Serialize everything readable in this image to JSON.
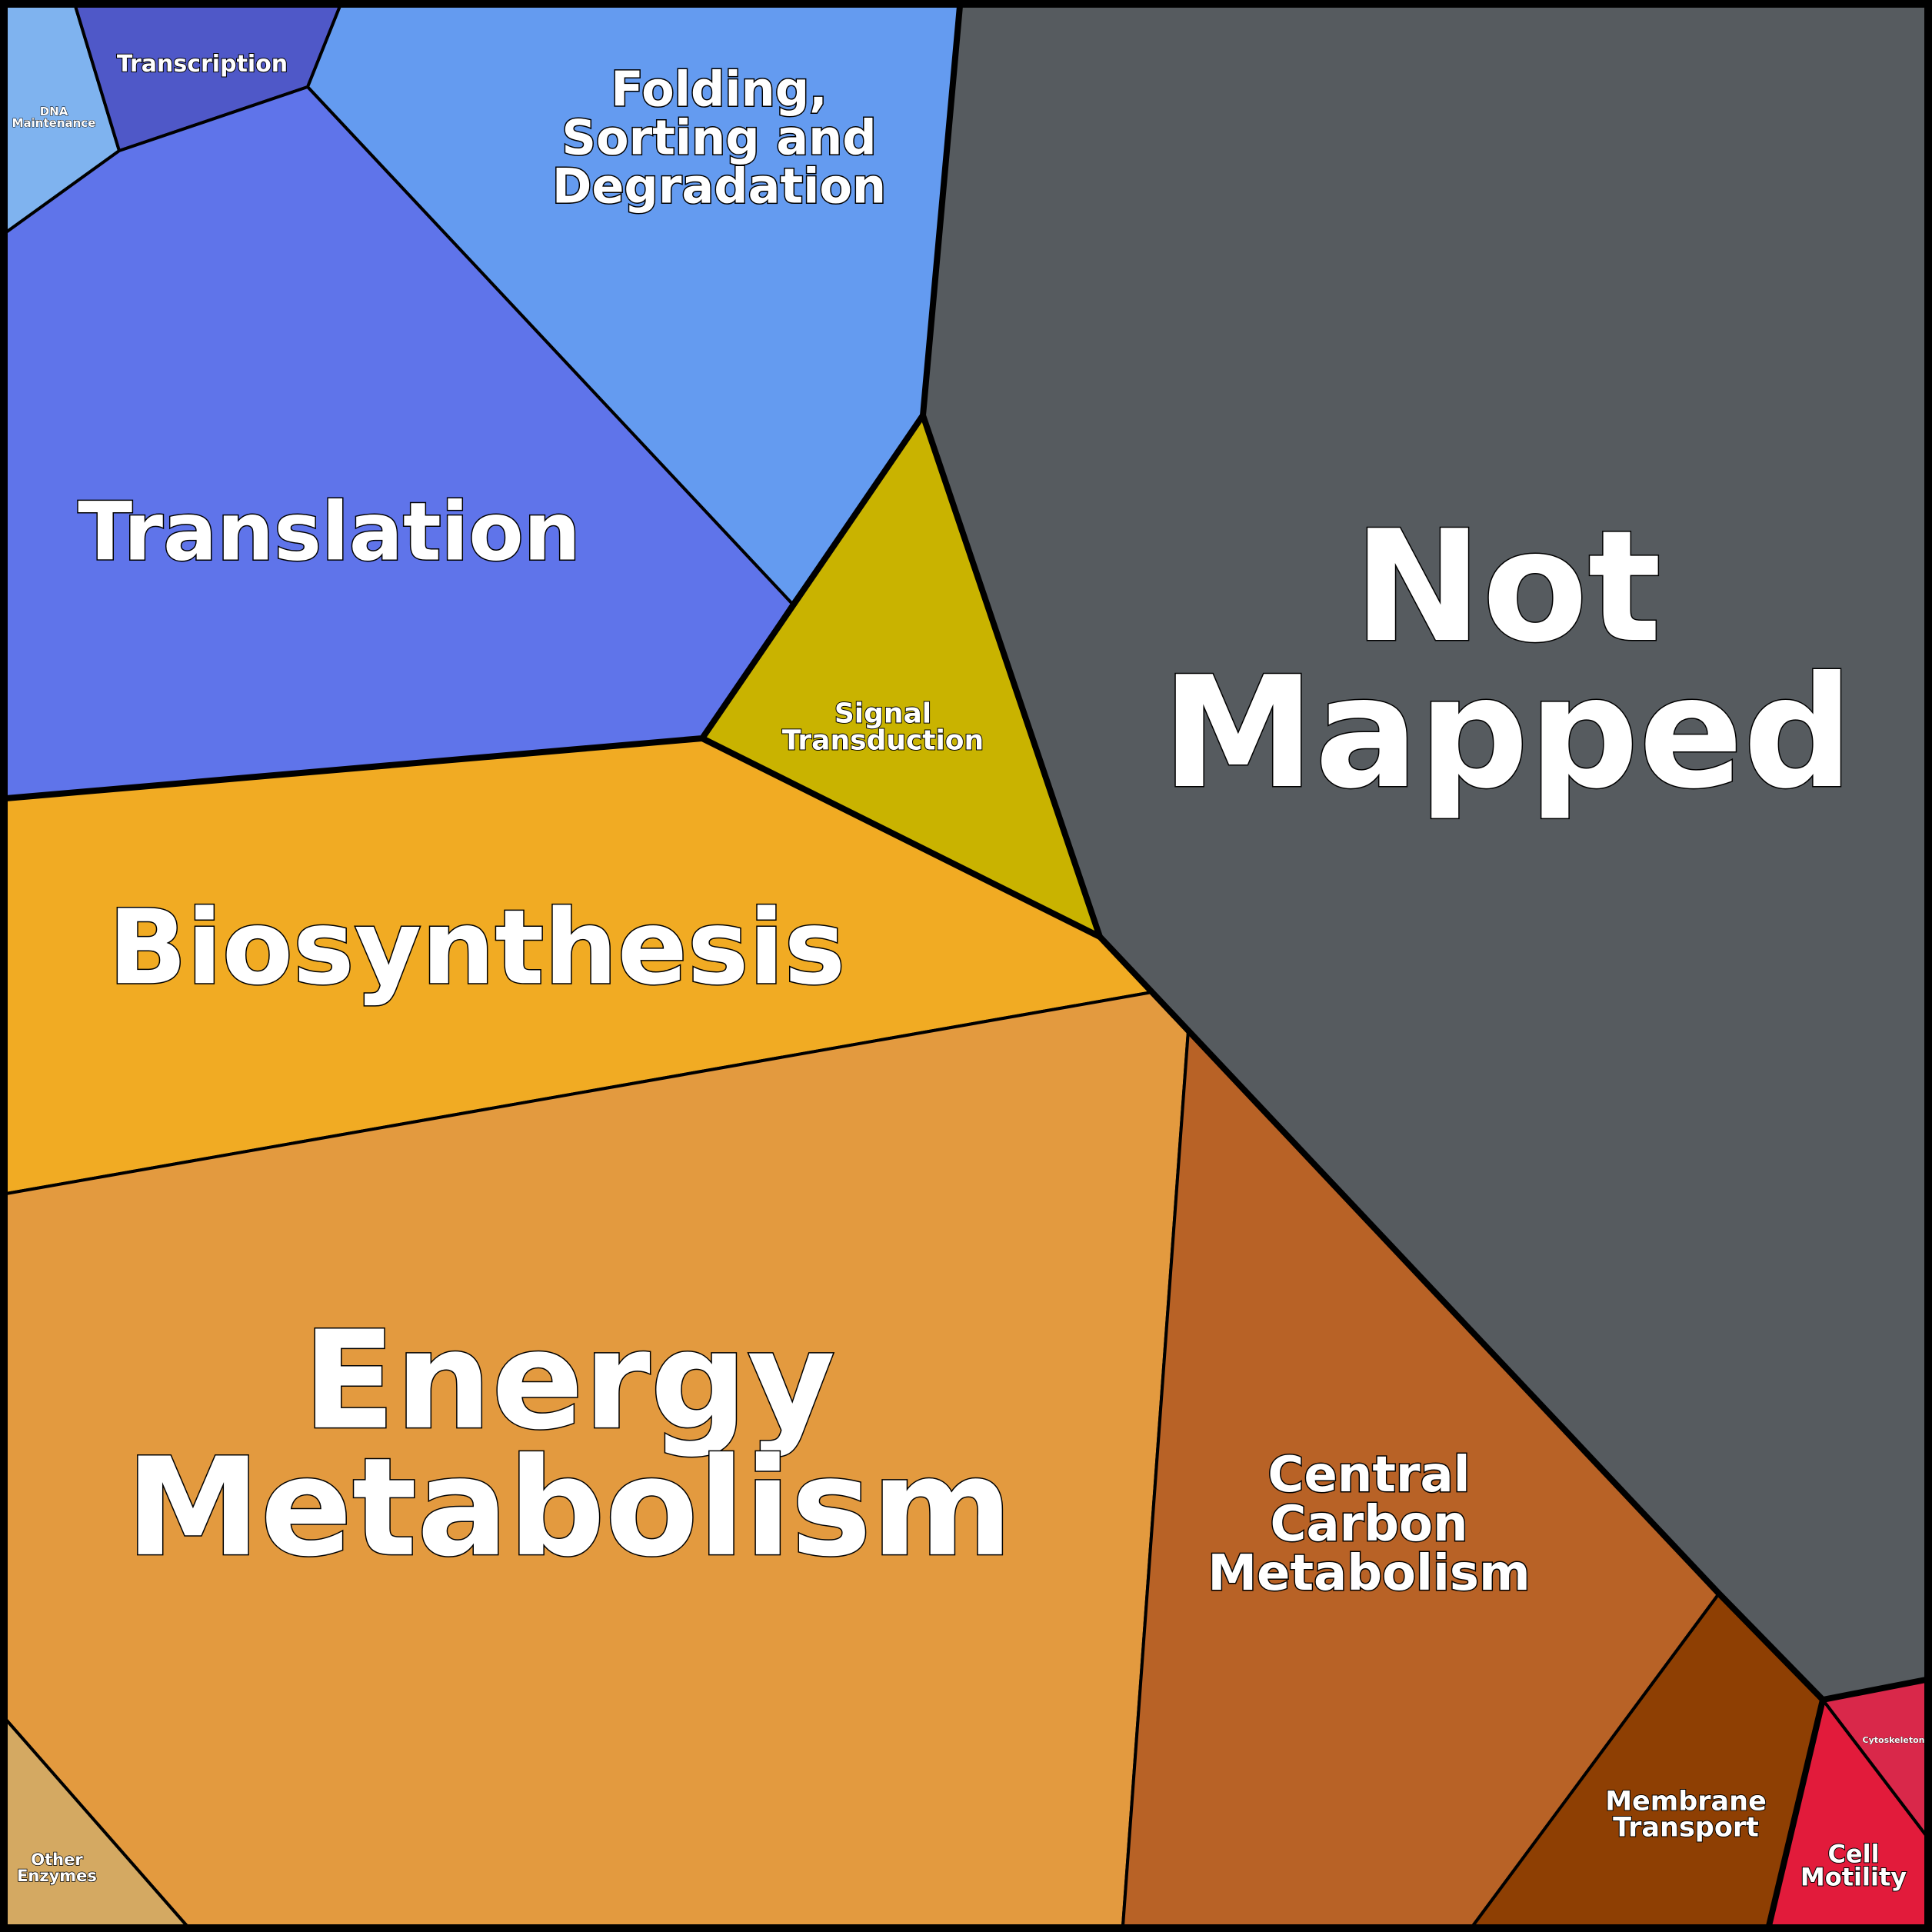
{
  "chart_data": {
    "type": "voronoi-treemap",
    "title": "",
    "cells": [
      {
        "key": "dna_maintenance",
        "label": [
          "DNA",
          "Maintenance"
        ],
        "color": "#7fb3ef"
      },
      {
        "key": "transcription",
        "label": [
          "Transcription"
        ],
        "color": "#4f58c8"
      },
      {
        "key": "folding",
        "label": [
          "Folding,",
          "Sorting and",
          "Degradation"
        ],
        "color": "#649bf0"
      },
      {
        "key": "translation",
        "label": [
          "Translation"
        ],
        "color": "#5f74ea"
      },
      {
        "key": "not_mapped",
        "label": [
          "Not",
          "Mapped"
        ],
        "color": "#565b5f"
      },
      {
        "key": "signal_transduction",
        "label": [
          "Signal",
          "Transduction"
        ],
        "color": "#c9b300"
      },
      {
        "key": "biosynthesis",
        "label": [
          "Biosynthesis"
        ],
        "color": "#f1ab23"
      },
      {
        "key": "energy_metabolism",
        "label": [
          "Energy",
          "Metabolism"
        ],
        "color": "#e39a3f"
      },
      {
        "key": "central_carbon_metabolism",
        "label": [
          "Central",
          "Carbon",
          "Metabolism"
        ],
        "color": "#b86226"
      },
      {
        "key": "other_enzymes",
        "label": [
          "Other",
          "Enzymes"
        ],
        "color": "#d4a962"
      },
      {
        "key": "membrane_transport",
        "label": [
          "Membrane",
          "Transport"
        ],
        "color": "#8e3f03"
      },
      {
        "key": "cell_motility",
        "label": [
          "Cell",
          "Motility"
        ],
        "color": "#e21b3b"
      },
      {
        "key": "cytoskeleton",
        "label": [
          "Cytoskeleton"
        ],
        "color": "#d9284a"
      }
    ]
  }
}
